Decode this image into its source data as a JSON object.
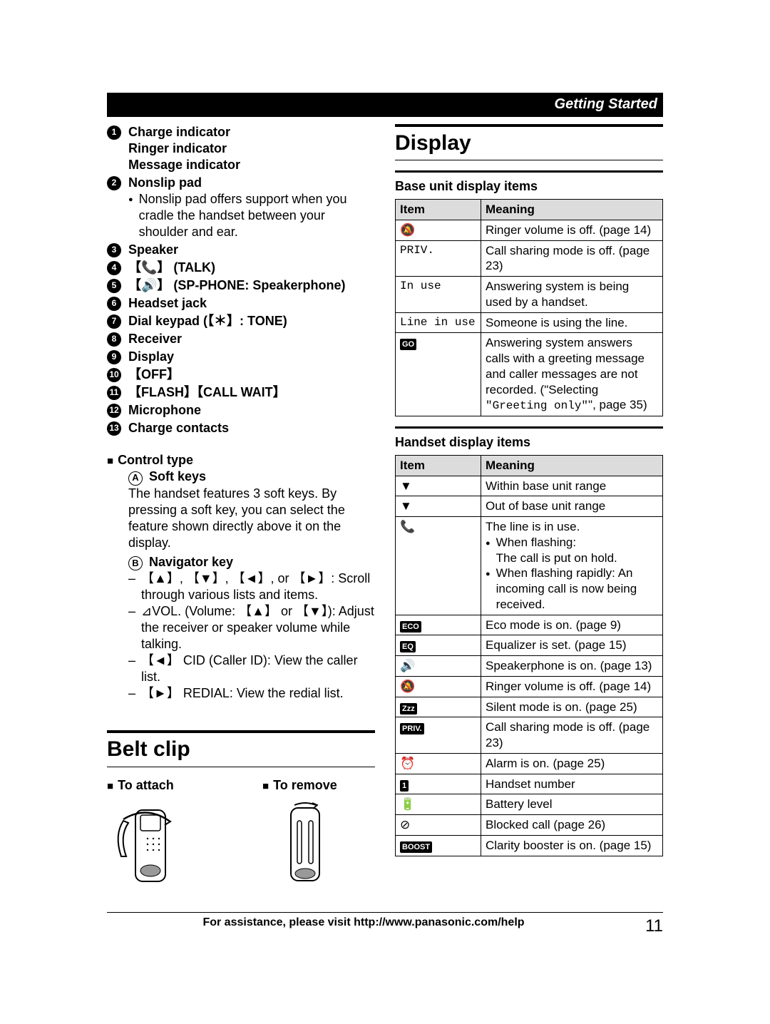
{
  "header": "Getting Started",
  "leftList": [
    {
      "n": "1",
      "bold": "Charge indicator",
      "lines": [
        "Ringer indicator",
        "Message indicator"
      ]
    },
    {
      "n": "2",
      "bold": "Nonslip pad",
      "bullet": "Nonslip pad offers support when you cradle the handset between your shoulder and ear."
    },
    {
      "n": "3",
      "bold": "Speaker"
    },
    {
      "n": "4",
      "boldHtml": "【📞】 (TALK)"
    },
    {
      "n": "5",
      "boldHtml": "【🔊】 (SP-PHONE: Speakerphone)"
    },
    {
      "n": "6",
      "bold": "Headset jack"
    },
    {
      "n": "7",
      "boldHtml": "Dial keypad (【＊】: TONE)"
    },
    {
      "n": "8",
      "bold": "Receiver"
    },
    {
      "n": "9",
      "bold": "Display"
    },
    {
      "n": "10",
      "boldHtml": "【OFF】"
    },
    {
      "n": "11",
      "boldHtml": "【FLASH】【CALL WAIT】"
    },
    {
      "n": "12",
      "bold": "Microphone"
    },
    {
      "n": "13",
      "bold": "Charge contacts"
    }
  ],
  "controlType": {
    "title": "Control type",
    "soft": {
      "letter": "A",
      "label": "Soft keys",
      "text": "The handset features 3 soft keys. By pressing a soft key, you can select the feature shown directly above it on the display."
    },
    "nav": {
      "letter": "B",
      "label": "Navigator key",
      "items": [
        "【▲】, 【▼】, 【◄】, or 【►】: Scroll through various lists and items.",
        "⊿VOL. (Volume: 【▲】 or 【▼】): Adjust the receiver or speaker volume while talking.",
        "【◄】 CID (Caller ID): View the caller list.",
        "【►】 REDIAL: View the redial list."
      ]
    }
  },
  "beltClip": {
    "title": "Belt clip",
    "attach": "To attach",
    "remove": "To remove"
  },
  "display": {
    "title": "Display",
    "baseHead": "Base unit display items",
    "handsetHead": "Handset display items",
    "thItem": "Item",
    "thMeaning": "Meaning",
    "baseRows": [
      {
        "icon": "🔕",
        "text": "Ringer volume is off. (page 14)"
      },
      {
        "iconMono": "PRIV.",
        "text": "Call sharing mode is off. (page 23)"
      },
      {
        "iconMono": "In use",
        "text": "Answering system is being used by a handset."
      },
      {
        "iconMono": "Line in use",
        "text": "Someone is using the line."
      },
      {
        "iconBox": "GO",
        "textHtml": "Answering system answers calls with a greeting message and caller messages are not recorded. (\"Selecting <span class=\"mono\">\"Greeting only\"</span>\", page 35)"
      }
    ],
    "handsetRows": [
      {
        "icon": "▼",
        "iconStyle": "outline",
        "text": "Within base unit range"
      },
      {
        "icon": "▼",
        "iconStyle": "solid",
        "text": "Out of base unit range"
      },
      {
        "icon": "📞",
        "textHtml": "The line is in use.<br><span class=\"bullet\">When flashing:<br>The call is put on hold.</span><span class=\"bullet\">When flashing rapidly: An incoming call is now being received.</span>"
      },
      {
        "iconBox": "ECO",
        "text": "Eco mode is on. (page 9)"
      },
      {
        "iconBox": "EQ",
        "text": "Equalizer is set. (page 15)"
      },
      {
        "icon": "🔊",
        "text": "Speakerphone is on. (page 13)"
      },
      {
        "icon": "🔕",
        "text": "Ringer volume is off. (page 14)"
      },
      {
        "iconBox": "Zzz",
        "text": "Silent mode is on. (page 25)"
      },
      {
        "iconBox": "PRIV.",
        "text": "Call sharing mode is off. (page 23)"
      },
      {
        "icon": "⏰",
        "text": "Alarm is on. (page 25)"
      },
      {
        "iconBox": "1",
        "text": "Handset number"
      },
      {
        "icon": "🔋",
        "text": "Battery level"
      },
      {
        "icon": "⊘",
        "text": "Blocked call (page 26)"
      },
      {
        "iconBox": "BOOST",
        "text": "Clarity booster is on. (page 15)"
      }
    ]
  },
  "footer": {
    "text": "For assistance, please visit http://www.panasonic.com/help",
    "page": "11"
  }
}
